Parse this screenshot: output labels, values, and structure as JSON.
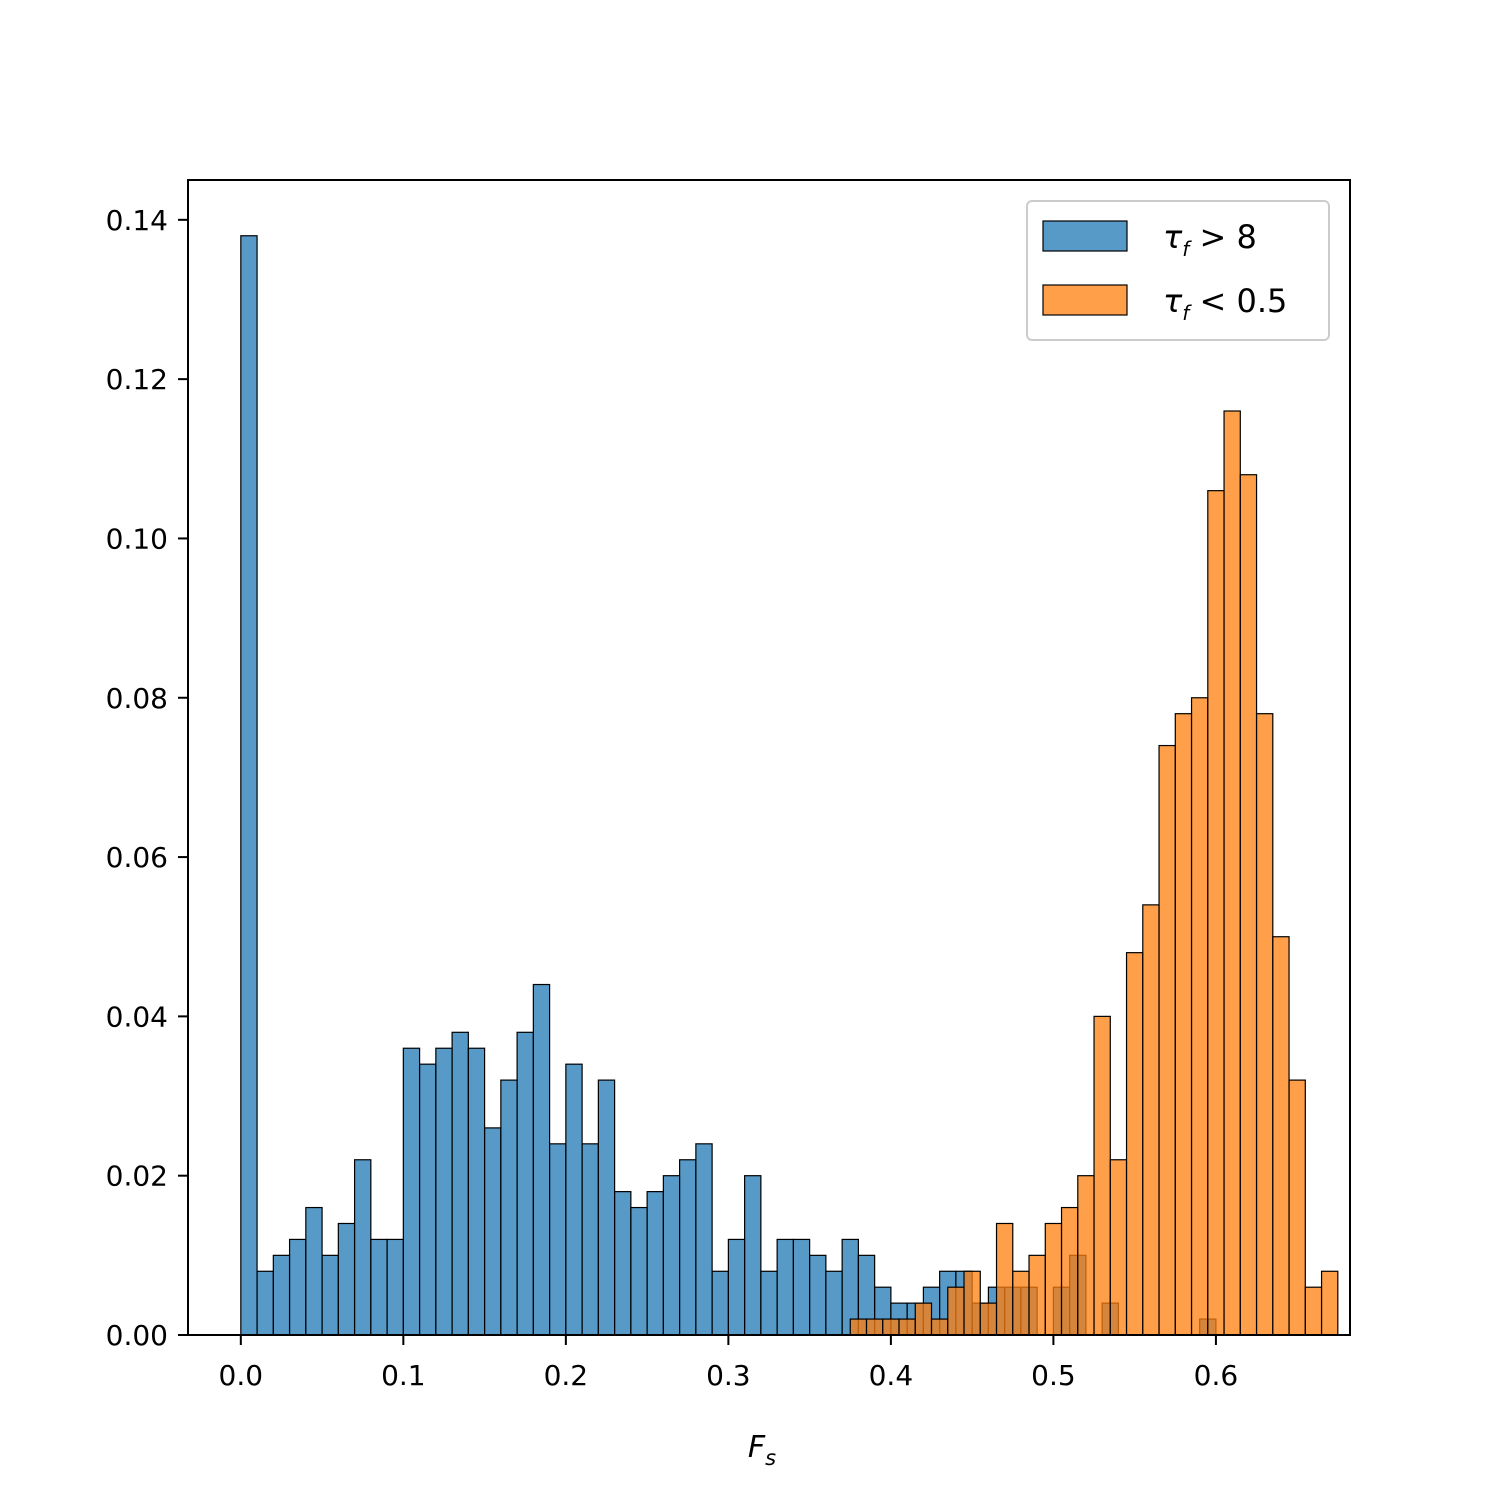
{
  "chart_data": {
    "type": "bar",
    "subtype": "histogram",
    "xlabel": "F",
    "xlabel_sub": "s",
    "ylabel": "",
    "title": "",
    "xlim": [
      -0.0325,
      0.6825
    ],
    "ylim": [
      0,
      0.145
    ],
    "xticks": [
      0.0,
      0.1,
      0.2,
      0.3,
      0.4,
      0.5,
      0.6
    ],
    "xtick_labels": [
      "0.0",
      "0.1",
      "0.2",
      "0.3",
      "0.4",
      "0.5",
      "0.6"
    ],
    "yticks": [
      0.0,
      0.02,
      0.04,
      0.06,
      0.08,
      0.1,
      0.12,
      0.14
    ],
    "ytick_labels": [
      "0.00",
      "0.02",
      "0.04",
      "0.06",
      "0.08",
      "0.10",
      "0.12",
      "0.14"
    ],
    "grid": false,
    "legend_position": "top-right",
    "series": [
      {
        "name": "τ_f > 8",
        "legend_symbol": "τ",
        "legend_sub": "f",
        "legend_rest": " > 8",
        "color": "#1f77b4",
        "fill_opacity": 0.75,
        "bin_start": 0.0,
        "bin_width": 0.01,
        "values": [
          0.138,
          0.008,
          0.01,
          0.012,
          0.016,
          0.01,
          0.014,
          0.022,
          0.012,
          0.012,
          0.036,
          0.034,
          0.036,
          0.038,
          0.036,
          0.026,
          0.032,
          0.038,
          0.044,
          0.024,
          0.034,
          0.024,
          0.032,
          0.018,
          0.016,
          0.018,
          0.02,
          0.022,
          0.024,
          0.008,
          0.012,
          0.02,
          0.008,
          0.012,
          0.012,
          0.01,
          0.008,
          0.012,
          0.01,
          0.006,
          0.004,
          0.004,
          0.006,
          0.008,
          0.008,
          0.004,
          0.006,
          0.006,
          0.006,
          0.0,
          0.006,
          0.01,
          0.0,
          0.004,
          0.0,
          0.0,
          0.0,
          0.0,
          0.0,
          0.002
        ]
      },
      {
        "name": "τ_f < 0.5",
        "legend_symbol": "τ",
        "legend_sub": "f",
        "legend_rest": " < 0.5",
        "color": "#ff7f0e",
        "fill_opacity": 0.75,
        "bin_start": 0.375,
        "bin_width": 0.01,
        "values": [
          0.002,
          0.002,
          0.002,
          0.002,
          0.004,
          0.002,
          0.006,
          0.008,
          0.004,
          0.014,
          0.008,
          0.01,
          0.014,
          0.016,
          0.02,
          0.04,
          0.022,
          0.048,
          0.054,
          0.074,
          0.078,
          0.08,
          0.106,
          0.116,
          0.108,
          0.078,
          0.05,
          0.032,
          0.006,
          0.008
        ]
      }
    ]
  }
}
